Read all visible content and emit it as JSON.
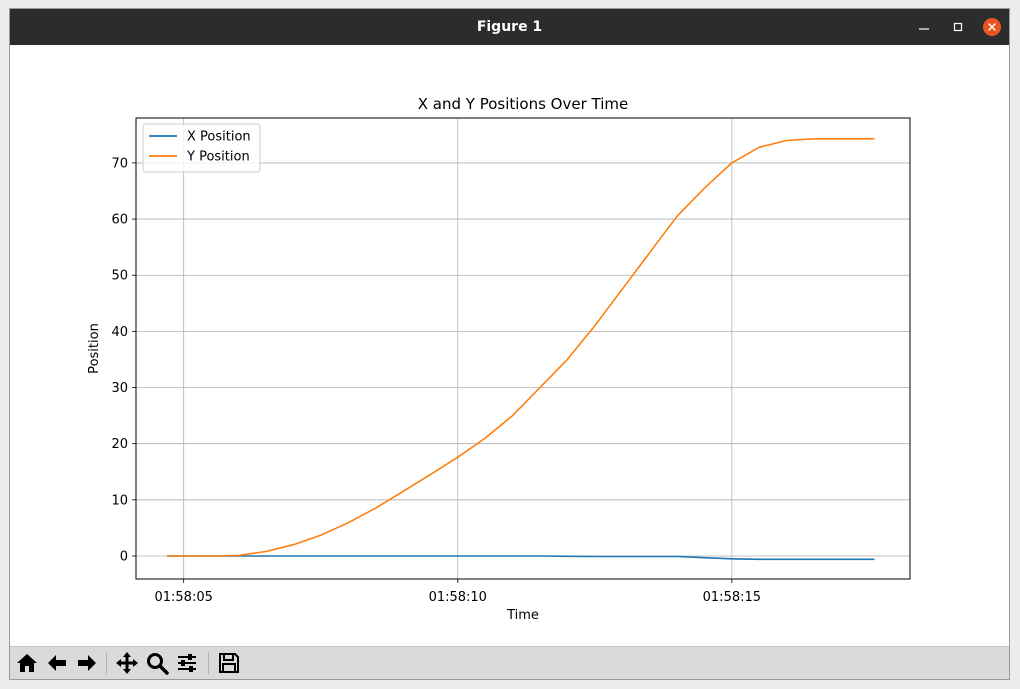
{
  "window": {
    "title": "Figure 1"
  },
  "controls": {
    "minimize_icon": "minimize-icon",
    "maximize_icon": "maximize-icon",
    "close_icon": "close-icon",
    "close_color": "#e95420"
  },
  "toolbar": {
    "icons": [
      "home-icon",
      "back-arrow-icon",
      "forward-arrow-icon",
      "pan-icon",
      "zoom-icon",
      "configure-subplots-icon",
      "save-icon"
    ]
  },
  "chart_data": {
    "type": "line",
    "title": "X and Y Positions Over Time",
    "xlabel": "Time",
    "ylabel": "Position",
    "x_ticks": [
      "01:58:05",
      "01:58:10",
      "01:58:15"
    ],
    "x_tick_values": [
      5,
      10,
      15
    ],
    "y_ticks": [
      "0",
      "10",
      "20",
      "30",
      "40",
      "50",
      "60",
      "70"
    ],
    "y_tick_values": [
      0,
      10,
      20,
      30,
      40,
      50,
      60,
      70
    ],
    "xlim": [
      "01:58:04.13",
      "01:58:18.25"
    ],
    "ylim": [
      -4.1,
      78.0
    ],
    "grid": true,
    "legend": "upper left",
    "x": [
      "01:58:04.7",
      "01:58:05",
      "01:58:05.5",
      "01:58:06",
      "01:58:06.5",
      "01:58:07",
      "01:58:07.5",
      "01:58:08",
      "01:58:08.5",
      "01:58:09",
      "01:58:09.5",
      "01:58:10",
      "01:58:10.5",
      "01:58:11",
      "01:58:11.5",
      "01:58:12",
      "01:58:12.5",
      "01:58:13",
      "01:58:13.5",
      "01:58:14",
      "01:58:14.5",
      "01:58:15",
      "01:58:15.5",
      "01:58:16",
      "01:58:16.5",
      "01:58:17",
      "01:58:17.6"
    ],
    "series": [
      {
        "name": "X Position",
        "color": "#1f77b4",
        "values": [
          0,
          0,
          0,
          0,
          0,
          0,
          0,
          0,
          0,
          0,
          0,
          0,
          0,
          0,
          0,
          -0.05,
          -0.1,
          -0.1,
          -0.1,
          -0.1,
          -0.3,
          -0.5,
          -0.6,
          -0.6,
          -0.6,
          -0.6,
          -0.6
        ]
      },
      {
        "name": "Y Position",
        "color": "#ff7f0e",
        "values": [
          0,
          0,
          0,
          0.1,
          0.8,
          2.0,
          3.7,
          5.9,
          8.5,
          11.5,
          14.5,
          17.6,
          21.0,
          25.0,
          30.0,
          35.0,
          41.0,
          47.5,
          54.0,
          60.5,
          65.5,
          70.0,
          72.8,
          74.0,
          74.3,
          74.3,
          74.3
        ]
      }
    ]
  }
}
